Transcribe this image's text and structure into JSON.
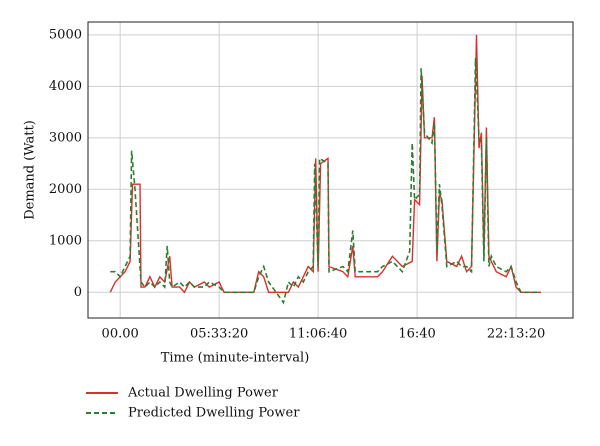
{
  "chart_data": {
    "type": "line",
    "x_label": "Time (minute-interval)",
    "y_label": "Demand (Watt)",
    "xlim": [
      -6500,
      91500
    ],
    "ylim": [
      -500,
      5250
    ],
    "xticks": [
      {
        "value": 0,
        "label": "00.00"
      },
      {
        "value": 20000,
        "label": "05:33:20"
      },
      {
        "value": 40000,
        "label": "11:06:40"
      },
      {
        "value": 60000,
        "label": "16:40"
      },
      {
        "value": 80000,
        "label": "22:13:20"
      }
    ],
    "yticks": [
      0,
      1000,
      2000,
      3000,
      4000,
      5000
    ],
    "grid": true,
    "legend": "bottom-left",
    "series": [
      {
        "name": "Actual Dwelling Power",
        "color": "#d9302c",
        "dash": false,
        "x": [
          -2000,
          -1000,
          0,
          1000,
          2000,
          2500,
          4000,
          4200,
          5000,
          6000,
          7000,
          8000,
          9000,
          10000,
          10500,
          12000,
          13000,
          14000,
          15000,
          17000,
          18000,
          20000,
          21000,
          27000,
          28000,
          29000,
          30000,
          34000,
          35000,
          36000,
          37000,
          38000,
          39000,
          39500,
          40000,
          40500,
          42000,
          42200,
          45000,
          46000,
          47000,
          47500,
          52000,
          53000,
          55000,
          57000,
          59000,
          59500,
          60500,
          61000,
          61500,
          63000,
          63500,
          64000,
          64500,
          65000,
          66000,
          68000,
          69000,
          70000,
          71000,
          72000,
          72500,
          73000,
          73500,
          74000,
          74500,
          75000,
          76000,
          78000,
          79000,
          80000,
          81000,
          85000
        ],
        "values": [
          0,
          200,
          300,
          400,
          600,
          2100,
          2100,
          100,
          100,
          300,
          100,
          300,
          200,
          700,
          100,
          100,
          0,
          200,
          100,
          200,
          100,
          200,
          0,
          0,
          400,
          300,
          0,
          0,
          200,
          100,
          300,
          500,
          400,
          2600,
          400,
          2500,
          2600,
          500,
          400,
          300,
          900,
          300,
          300,
          400,
          700,
          500,
          600,
          1800,
          1700,
          4200,
          3000,
          3000,
          3400,
          600,
          1900,
          1800,
          600,
          500,
          700,
          400,
          500,
          5000,
          2800,
          3100,
          700,
          3200,
          700,
          600,
          400,
          300,
          500,
          100,
          0,
          0
        ]
      },
      {
        "name": "Predicted Dwelling Power",
        "color": "#2e7d32",
        "dash": true,
        "x": [
          -2000,
          -1000,
          0,
          1000,
          2000,
          2300,
          3000,
          4200,
          5000,
          6000,
          7000,
          8000,
          9000,
          9500,
          10000,
          10500,
          12000,
          13000,
          14000,
          15000,
          17000,
          18000,
          20000,
          21000,
          27000,
          28000,
          29000,
          30000,
          33000,
          34000,
          35000,
          36000,
          37000,
          38000,
          39000,
          39300,
          40000,
          40300,
          42000,
          42200,
          45000,
          46000,
          47000,
          47500,
          52000,
          53000,
          55000,
          57000,
          58500,
          59000,
          59500,
          60500,
          60800,
          61500,
          63000,
          63500,
          64000,
          64500,
          65000,
          66000,
          68000,
          69000,
          70000,
          71000,
          71800,
          72500,
          73000,
          73500,
          74000,
          74500,
          75000,
          76000,
          78000,
          79000,
          80000,
          81000,
          85000
        ],
        "values": [
          400,
          400,
          300,
          500,
          700,
          2750,
          2000,
          200,
          100,
          200,
          100,
          200,
          100,
          900,
          200,
          100,
          200,
          100,
          200,
          100,
          100,
          200,
          100,
          0,
          0,
          300,
          500,
          200,
          -200,
          200,
          100,
          300,
          200,
          400,
          500,
          2500,
          500,
          2600,
          2500,
          400,
          500,
          400,
          1200,
          400,
          400,
          500,
          600,
          400,
          800,
          2900,
          1800,
          1900,
          4350,
          3100,
          2900,
          3300,
          800,
          2100,
          1700,
          500,
          600,
          500,
          500,
          400,
          4550,
          3000,
          2900,
          600,
          3000,
          500,
          700,
          500,
          400,
          500,
          200,
          0,
          0
        ]
      }
    ]
  }
}
